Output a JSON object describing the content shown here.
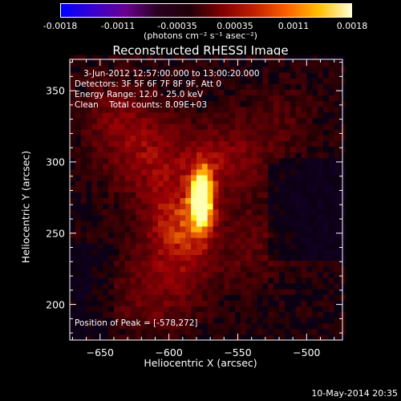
{
  "chart_data": {
    "type": "heatmap",
    "title": "Reconstructed RHESSI Image",
    "xlabel": "Heliocentric X (arcsec)",
    "ylabel": "Heliocentric Y (arcsec)",
    "xlim": [
      -672,
      -474
    ],
    "ylim": [
      175,
      372
    ],
    "xticks": [
      -650,
      -600,
      -550,
      -500
    ],
    "yticks": [
      200,
      250,
      300,
      350
    ],
    "colorbar": {
      "ticks": [
        "-0.0018",
        "-0.0011",
        "-0.00035",
        "0.00035",
        "0.0011",
        "0.0018"
      ],
      "tick_values": [
        -0.0018,
        -0.0011,
        -0.00035,
        0.00035,
        0.0011,
        0.0018
      ],
      "range": [
        -0.0018,
        0.0018
      ],
      "units": "(photons cm⁻² s⁻¹ asec⁻²)"
    },
    "annotations": [
      "3-Jun-2012 12:57:00.000 to 13:00:20.000",
      "Detectors: 3F 5F 6F 7F 8F 9F, Att 0",
      "Energy Range: 12.0 - 25.0 keV",
      "Clean    Total counts: 8.09E+03"
    ],
    "peak_label": "Position of Peak = [-578,272]",
    "peak": {
      "x": -578,
      "y": 272,
      "value": 0.0018
    },
    "sources": [
      {
        "x": -578,
        "y": 272,
        "sx": 6,
        "sy": 16,
        "amp": 1.0
      },
      {
        "x": -595,
        "y": 255,
        "sx": 16,
        "sy": 20,
        "amp": 0.45
      },
      {
        "x": -560,
        "y": 300,
        "sx": 22,
        "sy": 20,
        "amp": 0.3
      },
      {
        "x": -615,
        "y": 300,
        "sx": 22,
        "sy": 22,
        "amp": 0.3
      },
      {
        "x": -640,
        "y": 330,
        "sx": 20,
        "sy": 20,
        "amp": 0.22
      },
      {
        "x": -600,
        "y": 220,
        "sx": 26,
        "sy": 20,
        "amp": 0.22
      },
      {
        "x": -540,
        "y": 240,
        "sx": 18,
        "sy": 18,
        "amp": 0.18
      },
      {
        "x": -620,
        "y": 195,
        "sx": 20,
        "sy": 14,
        "amp": 0.15
      },
      {
        "x": -520,
        "y": 330,
        "sx": 18,
        "sy": 18,
        "amp": 0.13
      }
    ]
  },
  "footer": {
    "date": "10-May-2014 20:35"
  }
}
